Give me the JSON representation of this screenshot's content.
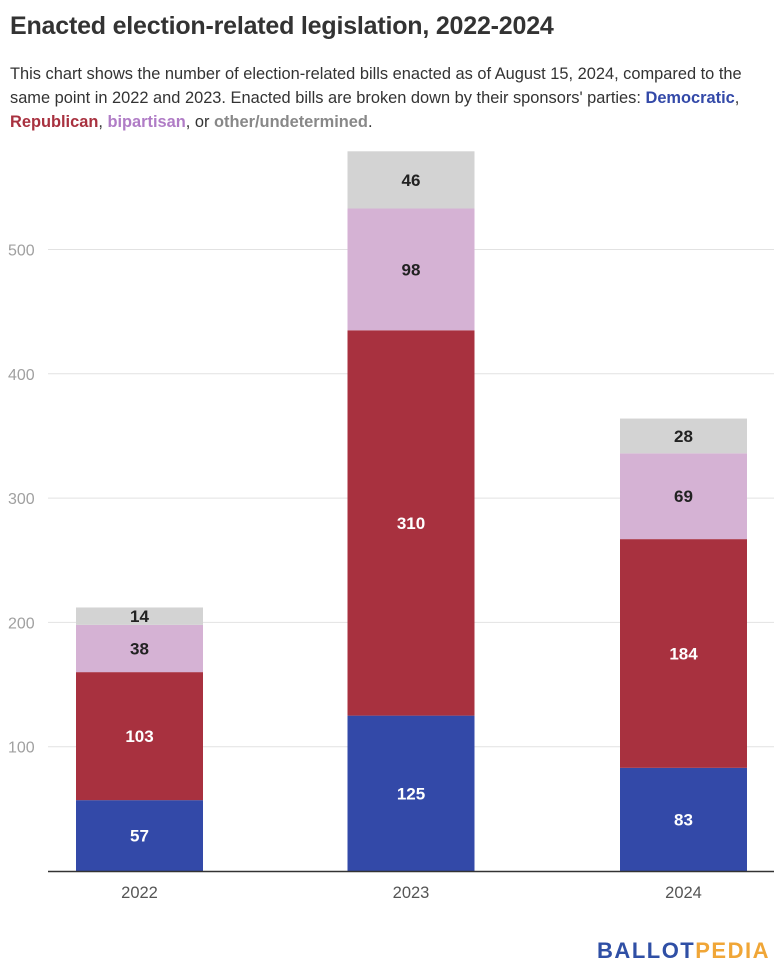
{
  "title": "Enacted election-related legislation, 2022-2024",
  "subtitle": {
    "text": "This chart shows the number of election-related bills enacted as of August 15, 2024, compared to the same point in 2022 and 2023. Enacted bills are broken down by their sponsors' parties:",
    "democratic": "Democratic",
    "sep1": ", ",
    "republican": "Republican",
    "sep2": ", ",
    "bipartisan": "bipartisan",
    "sep3": ", or ",
    "other": "other/undetermined",
    "end": "."
  },
  "colors": {
    "democratic": "#3349a8",
    "republican": "#a8313f",
    "bipartisan": "#d5b2d4",
    "other": "#d3d3d3",
    "bipartisan_text": "#b07cc6",
    "other_text": "#888888"
  },
  "logo": {
    "part1": "BALLOT",
    "part2": "PEDIA"
  },
  "chart_data": {
    "type": "bar",
    "stacked": true,
    "categories": [
      "2022",
      "2023",
      "2024"
    ],
    "series": [
      {
        "name": "Democratic",
        "values": [
          57,
          125,
          83
        ],
        "color": "#3349a8"
      },
      {
        "name": "Republican",
        "values": [
          103,
          310,
          184
        ],
        "color": "#a8313f"
      },
      {
        "name": "bipartisan",
        "values": [
          38,
          98,
          69
        ],
        "color": "#d5b2d4"
      },
      {
        "name": "other/undetermined",
        "values": [
          14,
          46,
          28
        ],
        "color": "#d3d3d3"
      }
    ],
    "ylim": [
      0,
      580
    ],
    "yticks": [
      100,
      200,
      300,
      400,
      500
    ],
    "grid": true,
    "legend": "inline in subtitle"
  }
}
